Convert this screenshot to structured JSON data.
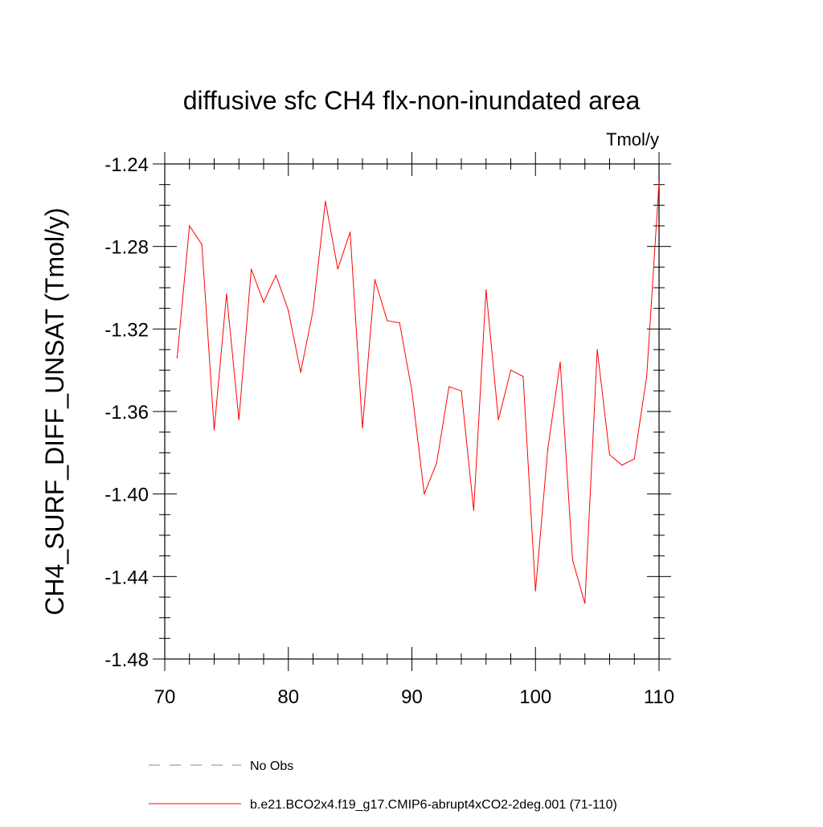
{
  "chart_data": {
    "type": "line",
    "title": "diffusive sfc CH4 flx-non-inundated area",
    "units_label": "Tmol/y",
    "xlabel": "",
    "ylabel": "CH4_SURF_DIFF_UNSAT  (Tmol/y)",
    "xlim": [
      70,
      110
    ],
    "ylim": [
      -1.48,
      -1.24
    ],
    "x_ticks": [
      70,
      80,
      90,
      100,
      110
    ],
    "x_tick_labels": [
      "70",
      "80",
      "90",
      "100",
      "110"
    ],
    "y_ticks": [
      -1.48,
      -1.44,
      -1.4,
      -1.36,
      -1.32,
      -1.28,
      -1.24
    ],
    "y_tick_labels": [
      "-1.48",
      "-1.44",
      "-1.40",
      "-1.36",
      "-1.32",
      "-1.28",
      "-1.24"
    ],
    "grid": false,
    "series": [
      {
        "name": "b.e21.BCO2x4.f19_g17.CMIP6-abrupt4xCO2-2deg.001 (71-110)",
        "color": "#ff0000",
        "x": [
          71,
          72,
          73,
          74,
          75,
          76,
          77,
          78,
          79,
          80,
          81,
          82,
          83,
          84,
          85,
          86,
          87,
          88,
          89,
          90,
          91,
          92,
          93,
          94,
          95,
          96,
          97,
          98,
          99,
          100,
          101,
          102,
          103,
          104,
          105,
          106,
          107,
          108,
          109,
          110
        ],
        "values": [
          -1.334,
          -1.27,
          -1.279,
          -1.369,
          -1.303,
          -1.364,
          -1.291,
          -1.307,
          -1.294,
          -1.311,
          -1.341,
          -1.311,
          -1.258,
          -1.291,
          -1.273,
          -1.368,
          -1.296,
          -1.316,
          -1.317,
          -1.35,
          -1.4,
          -1.385,
          -1.348,
          -1.35,
          -1.408,
          -1.301,
          -1.364,
          -1.34,
          -1.343,
          -1.447,
          -1.378,
          -1.336,
          -1.432,
          -1.453,
          -1.33,
          -1.381,
          -1.386,
          -1.383,
          -1.343,
          -1.249
        ]
      }
    ],
    "legend": {
      "position": "bottom",
      "entries": [
        {
          "label": "No Obs",
          "style": "dashed",
          "color": "#8080c0"
        },
        {
          "label": "b.e21.BCO2x4.f19_g17.CMIP6-abrupt4xCO2-2deg.001 (71-110)",
          "style": "solid",
          "color": "#ff0000"
        }
      ]
    }
  }
}
